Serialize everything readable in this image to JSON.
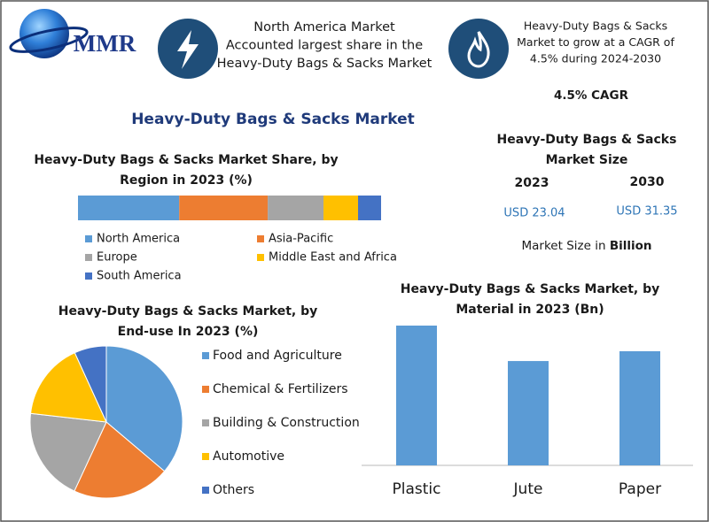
{
  "header": {
    "logo": "MMR",
    "highlight_left": [
      "North America Market",
      "Accounted largest share in the",
      "Heavy-Duty Bags & Sacks Market"
    ],
    "highlight_right": [
      "Heavy-Duty Bags & Sacks",
      "Market to grow at a CAGR of",
      "4.5% during 2024-2030"
    ]
  },
  "title": "Heavy-Duty Bags & Sacks Market",
  "cagr": "4.5% CAGR",
  "market_size": {
    "title": [
      "Heavy-Duty Bags & Sacks",
      "Market Size"
    ],
    "years": [
      "2023",
      "2030"
    ],
    "values": [
      "USD 23.04",
      "USD 31.35"
    ],
    "note": "Market Size in",
    "unit": "Billion"
  },
  "chart_data": [
    {
      "type": "stacked_bar",
      "title": [
        "Heavy-Duty Bags & Sacks Market Share, by",
        "Region in 2023 (%)"
      ],
      "series": [
        {
          "name": "North America",
          "color": "#5b9bd5",
          "values": [
            33.4
          ]
        },
        {
          "name": "Asia-Pacific",
          "color": "#ed7d31",
          "values": [
            29.2
          ]
        },
        {
          "name": "Europe",
          "color": "#a5a5a5",
          "values": [
            18.4
          ]
        },
        {
          "name": "Middle East and Africa",
          "color": "#ffc000",
          "values": [
            11.4
          ]
        },
        {
          "name": "South America",
          "color": "#4472c4",
          "values": [
            7.6
          ]
        }
      ]
    },
    {
      "type": "pie",
      "title": [
        "Heavy-Duty Bags & Sacks Market, by",
        "End-use In 2023 (%)"
      ],
      "categories": [
        "Food and Agriculture",
        "Chemical & Fertilizers",
        "Building & Construction",
        "Automotive",
        "Others"
      ],
      "values": [
        36.2,
        20.7,
        19.9,
        16.4,
        6.8
      ],
      "colors": [
        "#5b9bd5",
        "#ed7d31",
        "#a5a5a5",
        "#ffc000",
        "#4472c4"
      ]
    },
    {
      "type": "bar",
      "title": [
        "Heavy-Duty Bags & Sacks Market, by",
        "Material in 2023 (Bn)"
      ],
      "categories": [
        "Plastic",
        "Jute",
        "Paper"
      ],
      "values": [
        8.99,
        6.71,
        7.34
      ],
      "color": "#5b9bd5"
    }
  ]
}
